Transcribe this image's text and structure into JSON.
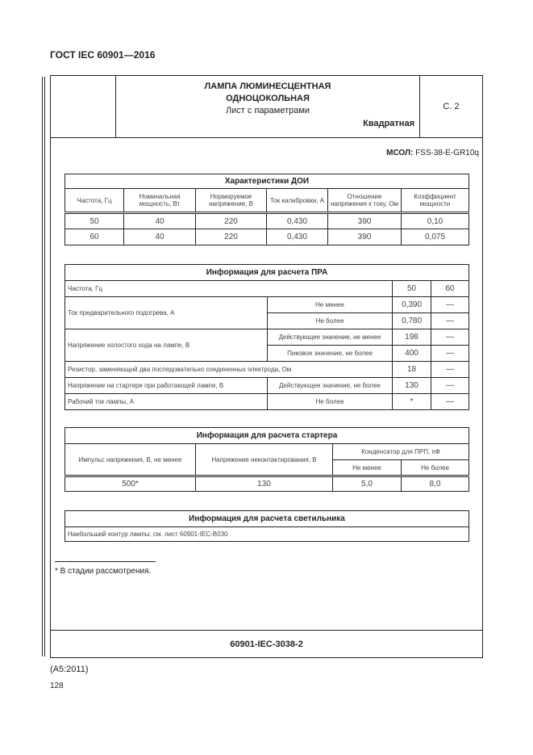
{
  "page_header": "ГОСТ IEC 60901—2016",
  "title_block": {
    "line1": "ЛАМПА ЛЮМИНЕСЦЕНТНАЯ",
    "line2": "ОДНОЦОКОЛЬНАЯ",
    "line3": "Лист с параметрами",
    "shape": "Квадратная",
    "page": "С. 2"
  },
  "mcol": {
    "label": "МСОЛ:",
    "value": "FSS-38-E-GR10q"
  },
  "doi": {
    "title": "Характеристики ДОИ",
    "headers": [
      "Частота, Гц",
      "Номинальная мощность, Вт",
      "Нормируемое напряжение, В",
      "Ток калибровки, А",
      "Отношение напряжения к току, Ом",
      "Коэффициент мощности"
    ],
    "rows": [
      [
        "50",
        "40",
        "220",
        "0,430",
        "390",
        "0,10"
      ],
      [
        "60",
        "40",
        "220",
        "0,430",
        "390",
        "0,075"
      ]
    ]
  },
  "pra": {
    "title": "Информация для расчета ПРА",
    "freq_label": "Частота, Гц",
    "f1": "50",
    "f2": "60",
    "preheat": {
      "label": "Ток предварительного подогрева, А",
      "min_label": "Не менее",
      "min": "0,390",
      "max_label": "Не более",
      "max": "0,780"
    },
    "ocv": {
      "label": "Напряжение холостого хода на лампе, В",
      "rms_label": "Действующее значение, не менее",
      "rms": "198",
      "peak_label": "Пиковое значение, не более",
      "peak": "400"
    },
    "resistor": {
      "label": "Резистор, заменяющий два последовательно соединенных электрода, Ом",
      "value": "18"
    },
    "starter_v": {
      "label": "Напряжение на стартере при работающей лампе, В",
      "cond": "Действующее значение, не более",
      "value": "130"
    },
    "current": {
      "label": "Рабочий ток лампы, А",
      "cond": "Не более",
      "value": "*"
    },
    "dash": "—"
  },
  "starter": {
    "title": "Информация для расчета стартера",
    "h1": "Импульс напряжения, В, не менее",
    "h2": "Напряжение неконтактирования, В",
    "h3": "Конденсатор для ПРП, пФ",
    "h3a": "Не менее",
    "h3b": "Не более",
    "values": [
      "500*",
      "130",
      "5,0",
      "8,0"
    ]
  },
  "lum": {
    "title": "Информация для расчета светильника",
    "text": "Наибольший контур лампы: см. лист 60901-IEC-B030"
  },
  "footnote": "* В стадии рассмотрения.",
  "sheet_id": "60901-IEC-3038-2",
  "amendment": "(A5:2011)",
  "page_number": "128"
}
